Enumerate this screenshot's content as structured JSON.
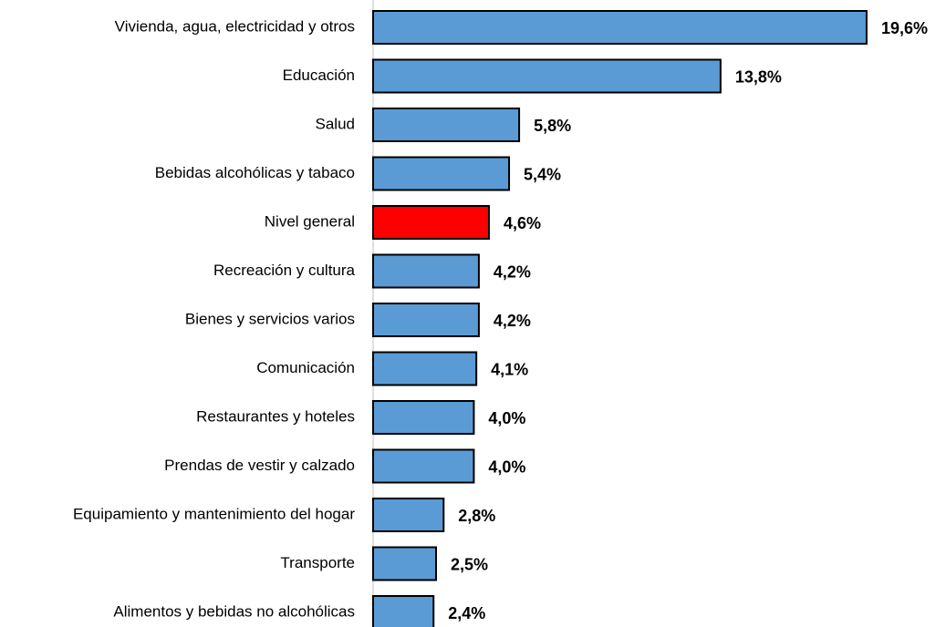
{
  "chart_data": {
    "type": "bar",
    "orientation": "horizontal",
    "categories": [
      "Vivienda, agua, electricidad y otros",
      "Educación",
      "Salud",
      "Bebidas alcohólicas y tabaco",
      "Nivel general",
      "Recreación y cultura",
      "Bienes y servicios varios",
      "Comunicación",
      "Restaurantes y hoteles",
      "Prendas de vestir y calzado",
      "Equipamiento y mantenimiento del hogar",
      "Transporte",
      "Alimentos y bebidas no alcohólicas"
    ],
    "values": [
      19.6,
      13.8,
      5.8,
      5.4,
      4.6,
      4.2,
      4.2,
      4.1,
      4.0,
      4.0,
      2.8,
      2.5,
      2.4
    ],
    "value_labels": [
      "19,6%",
      "13,8%",
      "5,8%",
      "5,4%",
      "4,6%",
      "4,2%",
      "4,2%",
      "4,1%",
      "4,0%",
      "4,0%",
      "2,8%",
      "2,5%",
      "2,4%"
    ],
    "colors": [
      "#5b9bd5",
      "#5b9bd5",
      "#5b9bd5",
      "#5b9bd5",
      "#ff0000",
      "#5b9bd5",
      "#5b9bd5",
      "#5b9bd5",
      "#5b9bd5",
      "#5b9bd5",
      "#5b9bd5",
      "#5b9bd5",
      "#5b9bd5"
    ],
    "xlim": [
      0,
      20
    ]
  }
}
